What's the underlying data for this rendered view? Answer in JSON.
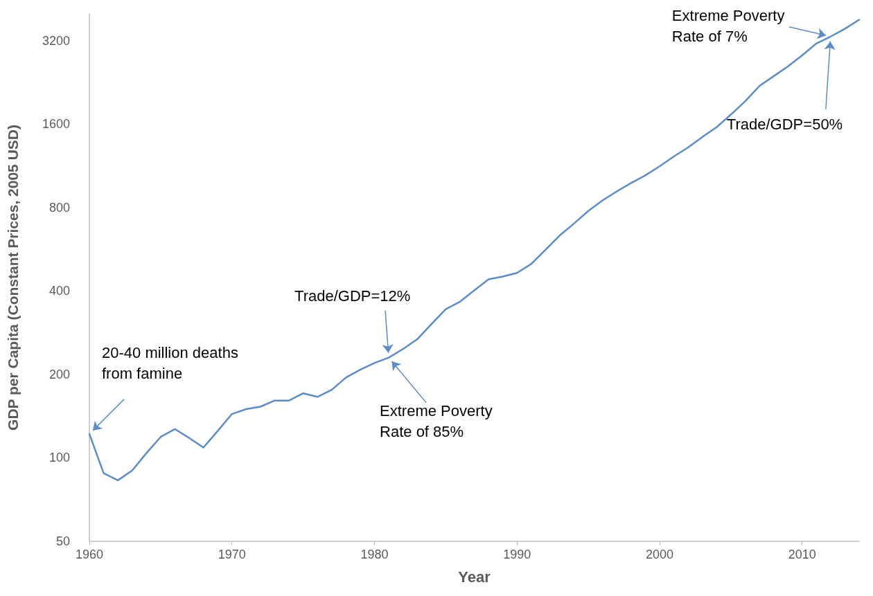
{
  "chart_data": {
    "type": "line",
    "xlabel": "Year",
    "ylabel": "GDP per Capita (Constant Prices, 2005 USD)",
    "x": [
      1960,
      1961,
      1962,
      1963,
      1964,
      1965,
      1966,
      1967,
      1968,
      1969,
      1970,
      1971,
      1972,
      1973,
      1974,
      1975,
      1976,
      1977,
      1978,
      1979,
      1980,
      1981,
      1982,
      1983,
      1984,
      1985,
      1986,
      1987,
      1988,
      1989,
      1990,
      1991,
      1992,
      1993,
      1994,
      1995,
      1996,
      1997,
      1998,
      1999,
      2000,
      2001,
      2002,
      2003,
      2004,
      2005,
      2006,
      2007,
      2008,
      2009,
      2010,
      2011,
      2012,
      2013,
      2014
    ],
    "series": [
      {
        "color": "#5b8bc9",
        "values": [
          122,
          88,
          83,
          90,
          104,
          119,
          127,
          118,
          109,
          125,
          144,
          150,
          153,
          161,
          161,
          171,
          166,
          176,
          195,
          208,
          220,
          230,
          247,
          268,
          304,
          344,
          366,
          402,
          441,
          451,
          465,
          501,
          563,
          635,
          701,
          778,
          849,
          915,
          981,
          1045,
          1127,
          1223,
          1318,
          1438,
          1560,
          1732,
          1934,
          2196,
          2382,
          2583,
          2833,
          3128,
          3313,
          3532,
          3808
        ]
      }
    ],
    "xlim": [
      1960,
      2014
    ],
    "xticks": [
      1960,
      1970,
      1980,
      1990,
      2000,
      2010
    ],
    "ylim": [
      50,
      4000
    ],
    "yticks": [
      50,
      100,
      200,
      400,
      800,
      1600,
      3200
    ],
    "log": "y",
    "grid": false,
    "legend": false,
    "marker": "none",
    "line_style": "solid",
    "annotations": [
      {
        "text": "20-40 million deaths from famine",
        "x": 1960,
        "y": 122
      },
      {
        "text": "Trade/GDP=12%",
        "x": 1981,
        "y": 230
      },
      {
        "text": "Extreme Poverty Rate of 85%",
        "x": 1981,
        "y": 230
      },
      {
        "text": "Extreme Poverty Rate of 7%",
        "x": 2012,
        "y": 3313
      },
      {
        "text": "Trade/GDP=50%",
        "x": 2012,
        "y": 3313
      }
    ]
  }
}
